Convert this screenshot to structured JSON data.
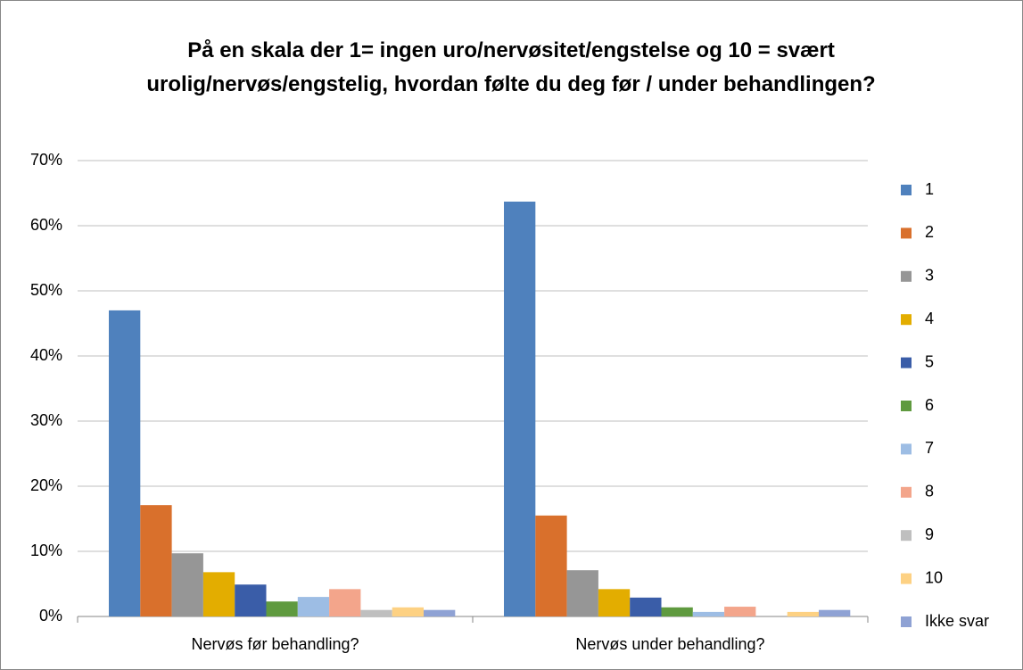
{
  "chart_data": {
    "type": "bar",
    "title": "På en skala der 1= ingen uro/nervøsitet/engstelse og 10 = svært urolig/nervøs/engstelig, hvordan følte du deg før / under behandlingen?",
    "categories": [
      "Nervøs før behandling?",
      "Nervøs under behandling?"
    ],
    "series": [
      {
        "name": "1",
        "color": "#4f81bd",
        "values": [
          47.0,
          63.7
        ]
      },
      {
        "name": "2",
        "color": "#d9702c",
        "values": [
          17.1,
          15.5
        ]
      },
      {
        "name": "3",
        "color": "#969696",
        "values": [
          9.7,
          7.1
        ]
      },
      {
        "name": "4",
        "color": "#e3ad00",
        "values": [
          6.8,
          4.2
        ]
      },
      {
        "name": "5",
        "color": "#3a5da8",
        "values": [
          4.9,
          2.9
        ]
      },
      {
        "name": "6",
        "color": "#5f9a3f",
        "values": [
          2.3,
          1.4
        ]
      },
      {
        "name": "7",
        "color": "#9dbde4",
        "values": [
          3.0,
          0.7
        ]
      },
      {
        "name": "8",
        "color": "#f3a58b",
        "values": [
          4.2,
          1.5
        ]
      },
      {
        "name": "9",
        "color": "#bfbfbf",
        "values": [
          1.0,
          0
        ]
      },
      {
        "name": "10",
        "color": "#fdd183",
        "values": [
          1.4,
          0.7
        ]
      },
      {
        "name": "Ikke svar",
        "color": "#8fa2d4",
        "values": [
          1.0,
          1.0
        ]
      }
    ],
    "ylim": [
      0,
      70
    ],
    "yticks": [
      {
        "value": 0,
        "label": "0%"
      },
      {
        "value": 10,
        "label": "10%"
      },
      {
        "value": 20,
        "label": "20%"
      },
      {
        "value": 30,
        "label": "30%"
      },
      {
        "value": 40,
        "label": "40%"
      },
      {
        "value": 50,
        "label": "50%"
      },
      {
        "value": 60,
        "label": "60%"
      },
      {
        "value": 70,
        "label": "70%"
      }
    ],
    "grid": true,
    "legend": "right"
  }
}
